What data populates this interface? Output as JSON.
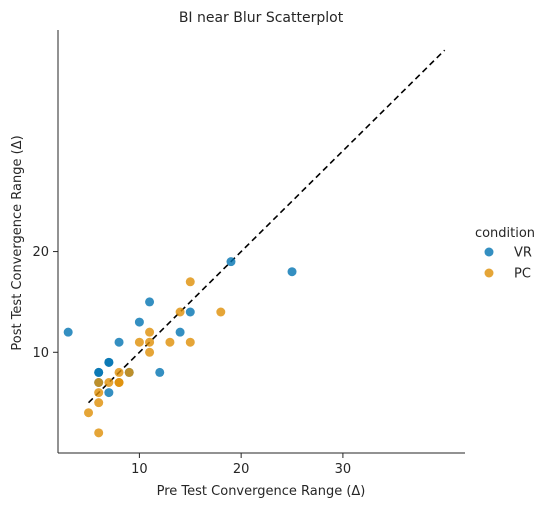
{
  "chart_data": {
    "type": "scatter",
    "title": "BI near Blur Scatterplot",
    "xlabel": "Pre Test Convergence Range (Δ)",
    "ylabel": "Post Test Convergence Range (Δ)",
    "xlim": [
      2,
      42
    ],
    "ylim": [
      0,
      42
    ],
    "x_ticks": [
      10,
      20,
      30
    ],
    "y_ticks": [
      10,
      20
    ],
    "legend": {
      "title": "condition",
      "placement": "right"
    },
    "series": [
      {
        "name": "VR",
        "color": "#0173b2",
        "points": [
          [
            3,
            12
          ],
          [
            6,
            7
          ],
          [
            6,
            8
          ],
          [
            6,
            8
          ],
          [
            7,
            6
          ],
          [
            7,
            9
          ],
          [
            7,
            9
          ],
          [
            8,
            11
          ],
          [
            9,
            8
          ],
          [
            10,
            13
          ],
          [
            11,
            15
          ],
          [
            12,
            8
          ],
          [
            14,
            12
          ],
          [
            15,
            14
          ],
          [
            19,
            19
          ],
          [
            25,
            18
          ]
        ]
      },
      {
        "name": "PC",
        "color": "#de8f05",
        "points": [
          [
            5,
            4
          ],
          [
            6,
            2
          ],
          [
            6,
            5
          ],
          [
            6,
            6
          ],
          [
            6,
            7
          ],
          [
            7,
            7
          ],
          [
            8,
            7
          ],
          [
            8,
            7
          ],
          [
            8,
            8
          ],
          [
            9,
            8
          ],
          [
            10,
            11
          ],
          [
            11,
            10
          ],
          [
            11,
            11
          ],
          [
            11,
            12
          ],
          [
            13,
            11
          ],
          [
            14,
            14
          ],
          [
            15,
            11
          ],
          [
            15,
            17
          ],
          [
            18,
            14
          ]
        ]
      }
    ],
    "reference_line": {
      "style": "dashed",
      "color": "#000000",
      "from": [
        5,
        5
      ],
      "to": [
        40,
        40
      ]
    }
  }
}
